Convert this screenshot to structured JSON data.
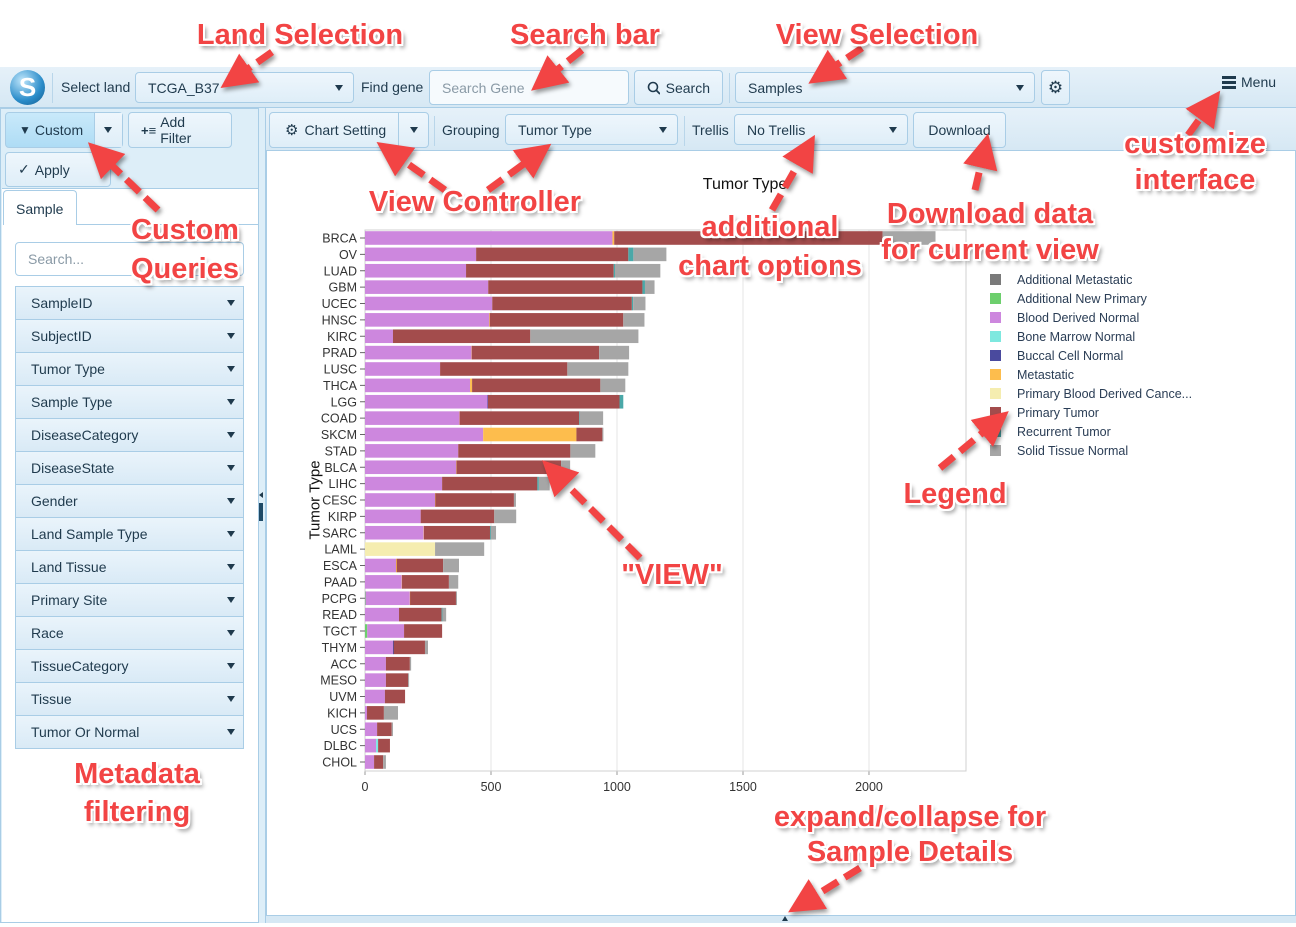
{
  "topbar": {
    "select_land_label": "Select land",
    "land_value": "TCGA_B37",
    "find_gene_label": "Find gene",
    "search_placeholder": "Search Gene",
    "search_button": "Search",
    "view_value": "Samples",
    "menu_label": "Menu"
  },
  "left_panel": {
    "custom_button": "Custom",
    "add_filter_button": "Add Filter",
    "apply_button": "Apply",
    "tab_label": "Sample",
    "search_placeholder": "Search...",
    "filters": [
      "SampleID",
      "SubjectID",
      "Tumor Type",
      "Sample Type",
      "DiseaseCategory",
      "DiseaseState",
      "Gender",
      "Land Sample Type",
      "Land Tissue",
      "Primary Site",
      "Race",
      "TissueCategory",
      "Tissue",
      "Tumor Or Normal"
    ]
  },
  "toolbar": {
    "chart_setting": "Chart Setting",
    "grouping_label": "Grouping",
    "grouping_value": "Tumor Type",
    "trellis_label": "Trellis",
    "trellis_value": "No Trellis",
    "download": "Download"
  },
  "chart_data": {
    "type": "bar",
    "orientation": "horizontal",
    "stacked": true,
    "title": "Tumor Type",
    "ylabel": "Tumor Type",
    "xlabel": "",
    "xlim": [
      0,
      2385
    ],
    "xticks": [
      0,
      500,
      1000,
      1500,
      2000
    ],
    "grid": true,
    "legend_position": "right",
    "categories": [
      "BRCA",
      "OV",
      "LUAD",
      "GBM",
      "UCEC",
      "HNSC",
      "KIRC",
      "PRAD",
      "LUSC",
      "THCA",
      "LGG",
      "COAD",
      "SKCM",
      "STAD",
      "BLCA",
      "LIHC",
      "CESC",
      "KIRP",
      "SARC",
      "LAML",
      "ESCA",
      "PAAD",
      "PCPG",
      "READ",
      "TGCT",
      "THYM",
      "ACC",
      "MESO",
      "UVM",
      "KICH",
      "UCS",
      "DLBC",
      "CHOL"
    ],
    "series": [
      {
        "name": "Additional Metastatic",
        "color": "#7a7a7a",
        "values": [
          0,
          0,
          0,
          0,
          0,
          0,
          0,
          0,
          0,
          0,
          0,
          0,
          0,
          0,
          0,
          0,
          0,
          0,
          0,
          0,
          0,
          0,
          0,
          0,
          0,
          0,
          0,
          0,
          0,
          0,
          0,
          0,
          0
        ]
      },
      {
        "name": "Additional New Primary",
        "color": "#6dcf6d",
        "values": [
          0,
          0,
          0,
          0,
          0,
          0,
          0,
          0,
          0,
          0,
          0,
          0,
          0,
          0,
          0,
          0,
          0,
          0,
          0,
          0,
          0,
          0,
          2,
          0,
          9,
          0,
          0,
          0,
          0,
          0,
          0,
          0,
          0
        ]
      },
      {
        "name": "Blood Derived Normal",
        "color": "#cd87de",
        "values": [
          982,
          441,
          401,
          489,
          505,
          493,
          111,
          423,
          298,
          417,
          486,
          375,
          469,
          370,
          362,
          306,
          278,
          221,
          233,
          0,
          123,
          146,
          176,
          135,
          146,
          111,
          83,
          83,
          79,
          8,
          48,
          44,
          36
        ]
      },
      {
        "name": "Bone Marrow Normal",
        "color": "#7ee8df",
        "values": [
          0,
          0,
          0,
          0,
          0,
          0,
          0,
          0,
          0,
          0,
          0,
          0,
          0,
          0,
          0,
          0,
          0,
          0,
          0,
          0,
          0,
          0,
          0,
          0,
          0,
          0,
          0,
          0,
          0,
          0,
          0,
          8,
          0
        ]
      },
      {
        "name": "Buccal Cell Normal",
        "color": "#4a4a9e",
        "values": [
          0,
          0,
          0,
          0,
          0,
          0,
          0,
          0,
          0,
          0,
          2,
          0,
          0,
          0,
          0,
          0,
          0,
          0,
          0,
          0,
          0,
          0,
          0,
          0,
          0,
          3,
          0,
          0,
          0,
          0,
          0,
          0,
          0
        ]
      },
      {
        "name": "Metastatic",
        "color": "#fdbd4d",
        "values": [
          7,
          0,
          0,
          0,
          0,
          2,
          0,
          1,
          0,
          8,
          0,
          1,
          370,
          0,
          1,
          0,
          1,
          0,
          1,
          0,
          3,
          1,
          1,
          0,
          0,
          0,
          0,
          0,
          0,
          0,
          0,
          0,
          0
        ]
      },
      {
        "name": "Primary Blood Derived Cance...",
        "color": "#f5edb0",
        "values": [
          0,
          0,
          0,
          0,
          0,
          0,
          0,
          0,
          0,
          0,
          0,
          0,
          0,
          0,
          0,
          0,
          0,
          0,
          0,
          278,
          0,
          0,
          0,
          0,
          0,
          0,
          0,
          0,
          0,
          0,
          0,
          0,
          0
        ]
      },
      {
        "name": "Primary Tumor",
        "color": "#a34c4c",
        "values": [
          1065,
          604,
          586,
          612,
          554,
          530,
          545,
          505,
          505,
          509,
          522,
          474,
          103,
          445,
          415,
          378,
          312,
          292,
          262,
          0,
          184,
          186,
          182,
          169,
          151,
          124,
          95,
          88,
          80,
          67,
          58,
          47,
          36
        ]
      },
      {
        "name": "Recurrent Tumor",
        "color": "#4aa8a8",
        "values": [
          0,
          20,
          5,
          10,
          5,
          0,
          0,
          0,
          0,
          0,
          15,
          2,
          0,
          0,
          0,
          6,
          0,
          0,
          3,
          0,
          0,
          0,
          0,
          3,
          0,
          0,
          0,
          0,
          0,
          0,
          0,
          0,
          0
        ]
      },
      {
        "name": "Solid Tissue Normal",
        "color": "#a6a6a6",
        "values": [
          210,
          131,
          180,
          38,
          49,
          84,
          429,
          119,
          242,
          99,
          0,
          93,
          4,
          99,
          36,
          43,
          8,
          87,
          21,
          195,
          63,
          37,
          4,
          15,
          0,
          12,
          5,
          4,
          0,
          56,
          5,
          0,
          11
        ]
      }
    ]
  },
  "annotations": {
    "land_selection": "Land Selection",
    "search_bar": "Search bar",
    "view_selection": "View Selection",
    "customize_1": "customize",
    "customize_2": "interface",
    "custom_1": "Custom",
    "custom_2": "Queries",
    "view_controller": "View Controller",
    "additional_1": "additional",
    "additional_2": "chart options",
    "download_1": "Download data",
    "download_2": "for current view",
    "legend": "Legend",
    "view": "\"VIEW\"",
    "metadata_1": "Metadata",
    "metadata_2": "filtering",
    "expand_1": "expand/collapse for",
    "expand_2": "Sample Details"
  }
}
